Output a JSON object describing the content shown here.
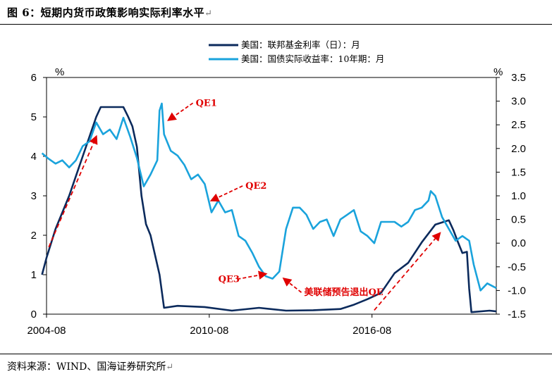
{
  "page": {
    "title": "图 6：短期内货币政策影响实际利率水平",
    "source": "资料来源：WIND、国海证券研究所",
    "return_mark": "↵"
  },
  "chart_data": {
    "type": "line",
    "x_ticks": [
      "2004-08",
      "2010-08",
      "2016-08"
    ],
    "x_range": [
      "2004-08",
      "2021-03"
    ],
    "y_left": {
      "unit": "%",
      "range": [
        0,
        6
      ],
      "ticks": [
        "0",
        "1",
        "2",
        "3",
        "4",
        "5",
        "6"
      ]
    },
    "y_right": {
      "unit": "%",
      "range": [
        -1.5,
        3.5
      ],
      "ticks": [
        "-1.5",
        "-1.0",
        "-0.5",
        "0.0",
        "0.5",
        "1.0",
        "1.5",
        "2.0",
        "2.5",
        "3.0",
        "3.5"
      ]
    },
    "legend_position": "top-center",
    "series": [
      {
        "name": "美国：联邦基金利率（日）：月",
        "axis": "left",
        "color": "#0b2a5c",
        "points": [
          [
            "2004-06",
            1.0
          ],
          [
            "2004-08",
            1.43
          ],
          [
            "2004-12",
            2.16
          ],
          [
            "2005-06",
            3.0
          ],
          [
            "2005-12",
            4.0
          ],
          [
            "2006-03",
            4.5
          ],
          [
            "2006-06",
            5.0
          ],
          [
            "2006-08",
            5.25
          ],
          [
            "2007-06",
            5.25
          ],
          [
            "2007-08",
            5.02
          ],
          [
            "2007-10",
            4.76
          ],
          [
            "2007-12",
            4.24
          ],
          [
            "2008-02",
            3.0
          ],
          [
            "2008-04",
            2.28
          ],
          [
            "2008-06",
            2.0
          ],
          [
            "2008-10",
            1.0
          ],
          [
            "2008-12",
            0.16
          ],
          [
            "2009-06",
            0.21
          ],
          [
            "2010-06",
            0.18
          ],
          [
            "2011-06",
            0.09
          ],
          [
            "2012-06",
            0.16
          ],
          [
            "2013-06",
            0.09
          ],
          [
            "2014-06",
            0.1
          ],
          [
            "2015-06",
            0.13
          ],
          [
            "2015-12",
            0.24
          ],
          [
            "2016-06",
            0.38
          ],
          [
            "2016-12",
            0.54
          ],
          [
            "2017-06",
            1.04
          ],
          [
            "2017-12",
            1.3
          ],
          [
            "2018-06",
            1.82
          ],
          [
            "2018-12",
            2.27
          ],
          [
            "2019-06",
            2.38
          ],
          [
            "2019-08",
            2.13
          ],
          [
            "2019-10",
            1.83
          ],
          [
            "2019-12",
            1.55
          ],
          [
            "2020-02",
            1.58
          ],
          [
            "2020-03",
            0.65
          ],
          [
            "2020-04",
            0.05
          ],
          [
            "2020-12",
            0.09
          ],
          [
            "2021-03",
            0.07
          ]
        ]
      },
      {
        "name": "美国：国债实际收益率：10年期：月",
        "axis": "right",
        "color": "#1aa3dc",
        "points": [
          [
            "2004-06",
            1.9
          ],
          [
            "2004-09",
            1.78
          ],
          [
            "2004-12",
            1.68
          ],
          [
            "2005-03",
            1.75
          ],
          [
            "2005-06",
            1.6
          ],
          [
            "2005-09",
            1.75
          ],
          [
            "2005-12",
            2.05
          ],
          [
            "2006-03",
            2.15
          ],
          [
            "2006-06",
            2.55
          ],
          [
            "2006-09",
            2.3
          ],
          [
            "2006-12",
            2.4
          ],
          [
            "2007-03",
            2.2
          ],
          [
            "2007-06",
            2.65
          ],
          [
            "2007-09",
            2.25
          ],
          [
            "2007-12",
            1.8
          ],
          [
            "2008-03",
            1.2
          ],
          [
            "2008-06",
            1.45
          ],
          [
            "2008-09",
            1.75
          ],
          [
            "2008-10",
            2.8
          ],
          [
            "2008-11",
            2.95
          ],
          [
            "2008-12",
            2.3
          ],
          [
            "2009-03",
            1.95
          ],
          [
            "2009-06",
            1.85
          ],
          [
            "2009-09",
            1.65
          ],
          [
            "2009-12",
            1.35
          ],
          [
            "2010-03",
            1.45
          ],
          [
            "2010-06",
            1.25
          ],
          [
            "2010-09",
            0.65
          ],
          [
            "2010-12",
            0.9
          ],
          [
            "2011-03",
            0.65
          ],
          [
            "2011-06",
            0.7
          ],
          [
            "2011-09",
            0.15
          ],
          [
            "2011-12",
            0.05
          ],
          [
            "2012-03",
            -0.2
          ],
          [
            "2012-06",
            -0.5
          ],
          [
            "2012-09",
            -0.7
          ],
          [
            "2012-12",
            -0.75
          ],
          [
            "2013-03",
            -0.6
          ],
          [
            "2013-06",
            0.3
          ],
          [
            "2013-09",
            0.75
          ],
          [
            "2013-12",
            0.75
          ],
          [
            "2014-03",
            0.6
          ],
          [
            "2014-06",
            0.3
          ],
          [
            "2014-09",
            0.45
          ],
          [
            "2014-12",
            0.5
          ],
          [
            "2015-03",
            0.15
          ],
          [
            "2015-06",
            0.5
          ],
          [
            "2015-09",
            0.6
          ],
          [
            "2015-12",
            0.7
          ],
          [
            "2016-03",
            0.25
          ],
          [
            "2016-06",
            0.15
          ],
          [
            "2016-09",
            0.0
          ],
          [
            "2016-12",
            0.45
          ],
          [
            "2017-03",
            0.45
          ],
          [
            "2017-06",
            0.45
          ],
          [
            "2017-09",
            0.35
          ],
          [
            "2017-12",
            0.45
          ],
          [
            "2018-03",
            0.7
          ],
          [
            "2018-06",
            0.75
          ],
          [
            "2018-09",
            0.9
          ],
          [
            "2018-10",
            1.1
          ],
          [
            "2018-12",
            1.0
          ],
          [
            "2019-03",
            0.55
          ],
          [
            "2019-06",
            0.3
          ],
          [
            "2019-09",
            0.05
          ],
          [
            "2019-12",
            0.15
          ],
          [
            "2020-03",
            0.05
          ],
          [
            "2020-05",
            -0.45
          ],
          [
            "2020-08",
            -1.0
          ],
          [
            "2020-11",
            -0.85
          ],
          [
            "2021-01",
            -0.9
          ],
          [
            "2021-03",
            -0.95
          ]
        ]
      }
    ],
    "annotations": [
      {
        "label": "QE1",
        "at": [
          "2009-02",
          2.6
        ],
        "text_at": [
          "2010-02",
          2.9
        ]
      },
      {
        "label": "QE2",
        "at": [
          "2010-09",
          0.9
        ],
        "text_at": [
          "2011-12",
          1.15
        ]
      },
      {
        "label": "QE3",
        "at": [
          "2012-09",
          -0.65
        ],
        "text_at": [
          "2010-12",
          -0.82
        ]
      },
      {
        "label": "美联储预告退出QE",
        "at": [
          "2013-05",
          -0.75
        ],
        "text_at": [
          "2014-02",
          -1.1
        ]
      },
      {
        "label": "",
        "at": [
          "2006-06",
          4.5
        ],
        "from": [
          "2004-09",
          1.7
        ],
        "axis": "left"
      },
      {
        "label": "",
        "at": [
          "2019-02",
          2.05
        ],
        "from": [
          "2016-09",
          0.1
        ],
        "axis": "left"
      }
    ]
  }
}
